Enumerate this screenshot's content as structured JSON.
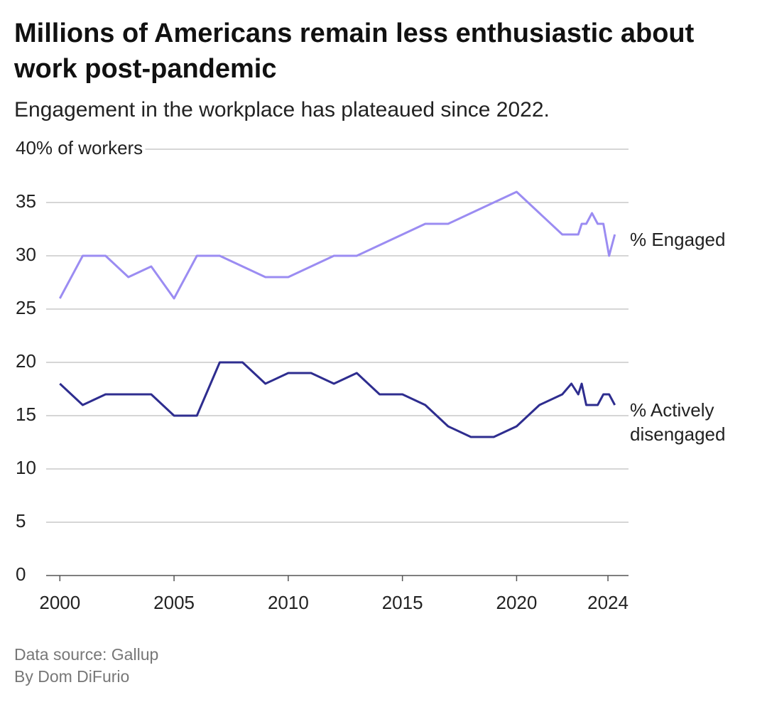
{
  "chart_data": {
    "type": "line",
    "title": "Millions of Americans remain less enthusiastic about work post-pandemic",
    "subtitle": "Engagement in the workplace has plateaued since 2022.",
    "source": "Data source: Gallup",
    "byline": "By Dom DiFurio",
    "x": [
      2000,
      2001,
      2002,
      2003,
      2004,
      2005,
      2006,
      2007,
      2008,
      2009,
      2010,
      2011,
      2012,
      2013,
      2014,
      2015,
      2016,
      2017,
      2018,
      2019,
      2020,
      2021,
      2022,
      2022.4,
      2022.7,
      2022.85,
      2023.05,
      2023.3,
      2023.55,
      2023.8,
      2024.05,
      2024.3
    ],
    "series": [
      {
        "name": "% Engaged",
        "color": "#9b8cf2",
        "values": [
          26,
          30,
          30,
          28,
          29,
          26,
          30,
          30,
          29,
          28,
          28,
          29,
          30,
          30,
          31,
          32,
          33,
          33,
          34,
          35,
          36,
          34,
          32,
          32,
          32,
          33,
          33,
          34,
          33,
          33,
          30,
          32
        ]
      },
      {
        "name": "% Actively disengaged",
        "color": "#2e2d8f",
        "values": [
          18,
          16,
          17,
          17,
          17,
          15,
          15,
          20,
          20,
          18,
          19,
          19,
          18,
          19,
          17,
          17,
          16,
          14,
          13,
          13,
          14,
          16,
          17,
          18,
          17,
          18,
          16,
          16,
          16,
          17,
          17,
          16
        ]
      }
    ],
    "xlim": [
      1999.4,
      2024.9
    ],
    "xticks": [
      2000,
      2005,
      2010,
      2015,
      2020,
      2024
    ],
    "ylim": [
      0,
      40
    ],
    "yticks": [
      0,
      5,
      10,
      15,
      20,
      25,
      30,
      35,
      {
        "value": 40,
        "label": "40% of workers"
      }
    ],
    "grid": true
  }
}
